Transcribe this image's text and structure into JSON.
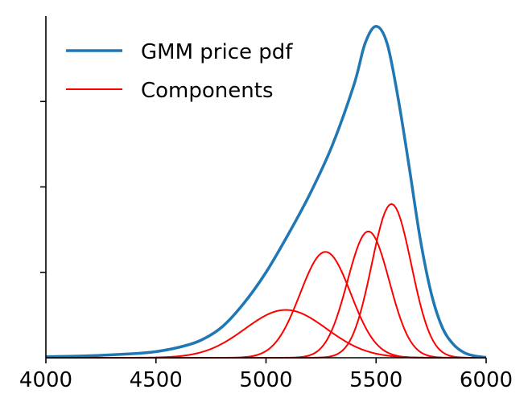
{
  "chart_data": {
    "type": "line",
    "title": "",
    "xlabel": "",
    "ylabel": "",
    "xlim": [
      4000,
      6000
    ],
    "ylim": [
      0,
      1.0
    ],
    "x_ticks": [
      4000,
      4500,
      5000,
      5500,
      6000
    ],
    "x_tick_labels": [
      "4000",
      "4500",
      "5000",
      "5500",
      "6000"
    ],
    "y_ticks": [
      0.25,
      0.5,
      0.75
    ],
    "y_tick_labels_shown": false,
    "grid": false,
    "legend": {
      "placement": "top-left",
      "entries": [
        "GMM price pdf",
        "Components"
      ]
    },
    "series": [
      {
        "name": "GMM price pdf",
        "color": "#1f77b4",
        "x": [
          4000,
          4200,
          4400,
          4500,
          4600,
          4700,
          4800,
          4900,
          5000,
          5100,
          5200,
          5300,
          5400,
          5450,
          5500,
          5550,
          5600,
          5650,
          5700,
          5750,
          5800,
          5850,
          5900,
          5950,
          6000
        ],
        "y": [
          0.003,
          0.006,
          0.012,
          0.018,
          0.03,
          0.05,
          0.09,
          0.16,
          0.25,
          0.36,
          0.48,
          0.62,
          0.8,
          0.92,
          0.97,
          0.92,
          0.76,
          0.56,
          0.35,
          0.19,
          0.09,
          0.04,
          0.015,
          0.005,
          0.001
        ]
      },
      {
        "name": "Components",
        "color": "#ff0000",
        "components": [
          {
            "mean": 5090,
            "sd": 185,
            "peak": 0.14
          },
          {
            "mean": 5270,
            "sd": 115,
            "peak": 0.31
          },
          {
            "mean": 5465,
            "sd": 95,
            "peak": 0.37
          },
          {
            "mean": 5570,
            "sd": 90,
            "peak": 0.45
          }
        ]
      }
    ]
  }
}
